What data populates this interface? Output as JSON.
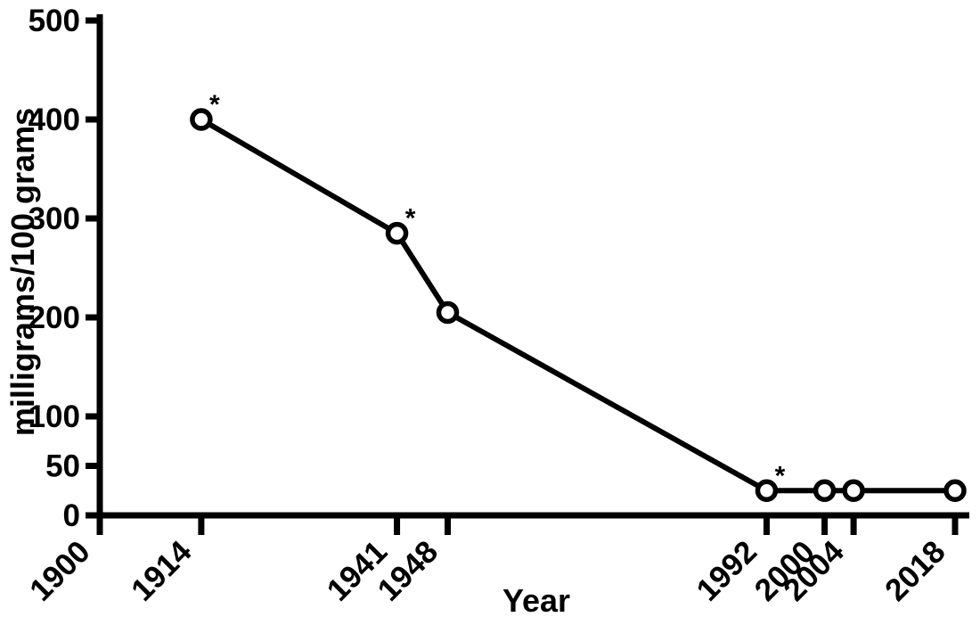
{
  "figure": {
    "background_color": "#ffffff",
    "ink_color": "#000000"
  },
  "chart_data": {
    "type": "line",
    "title": "",
    "xlabel": "Year",
    "ylabel": "milligrams/100 grams",
    "xlim": [
      1900,
      2020
    ],
    "ylim": [
      0,
      500
    ],
    "x_ticks": [
      1900,
      1914,
      1941,
      1948,
      1992,
      2000,
      2004,
      2018
    ],
    "y_ticks": [
      0,
      50,
      100,
      200,
      300,
      400,
      500
    ],
    "grid": false,
    "legend": "none",
    "marker_style": "open-circle",
    "line_color": "#000000",
    "annotation_symbol": "*",
    "starred_x": [
      1914,
      1941,
      1992
    ],
    "series": [
      {
        "x": [
          1914,
          1941,
          1948,
          1992,
          2000,
          2004,
          2018
        ],
        "y": [
          400,
          285,
          205,
          25,
          25,
          25,
          25
        ]
      }
    ]
  }
}
